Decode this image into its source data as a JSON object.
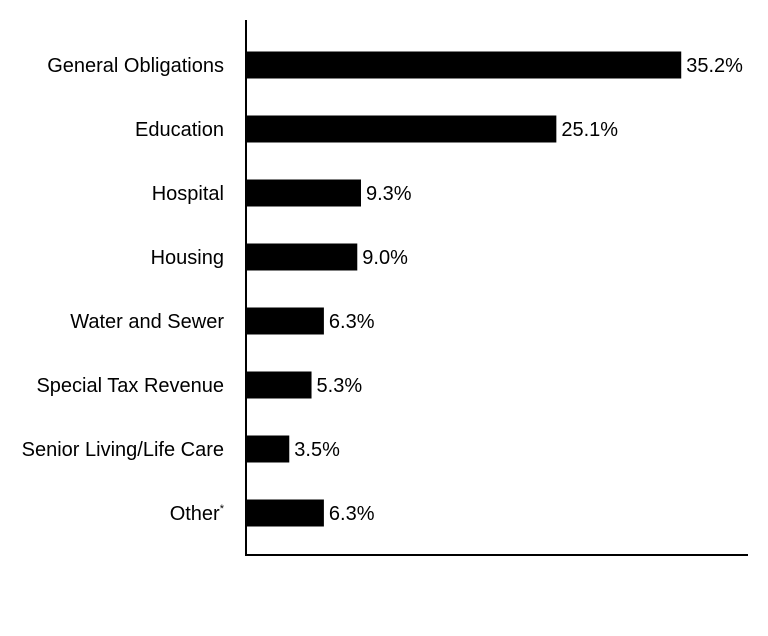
{
  "chart_data": {
    "type": "bar",
    "orientation": "horizontal",
    "title": "",
    "xlabel": "",
    "ylabel": "",
    "categories": [
      "General Obligations",
      "Education",
      "Hospital",
      "Housing",
      "Water and Sewer",
      "Special Tax Revenue",
      "Senior Living/Life Care",
      "Other"
    ],
    "values": [
      35.2,
      25.1,
      9.3,
      9.0,
      6.3,
      5.3,
      3.5,
      6.3
    ],
    "value_labels": [
      "35.2%",
      "25.1%",
      "9.3%",
      "9.0%",
      "6.3%",
      "5.3%",
      "3.5%",
      "6.3%"
    ],
    "footnote_marks": [
      "",
      "",
      "",
      "",
      "",
      "",
      "",
      "*"
    ],
    "xlim": [
      0,
      40.6
    ],
    "grid": false,
    "legend": "none",
    "bar_color": "#000000"
  }
}
